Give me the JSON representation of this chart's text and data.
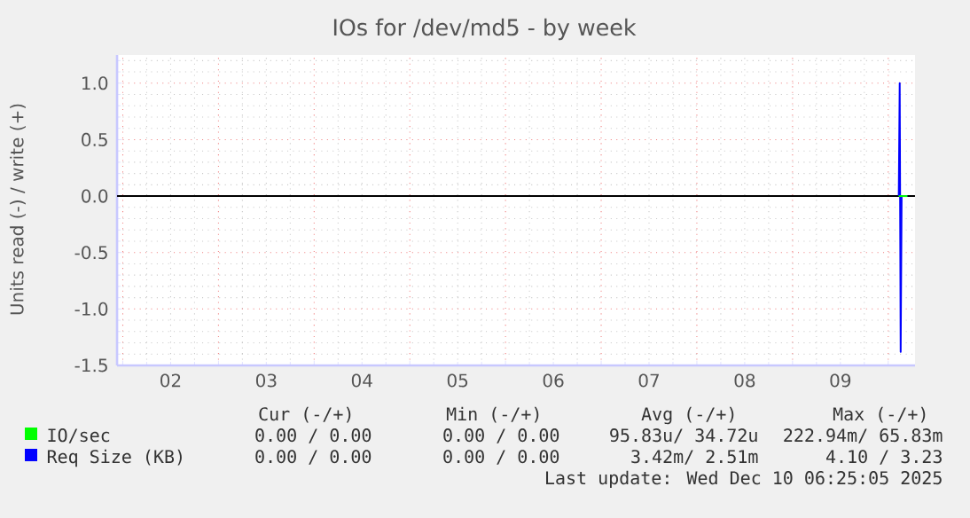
{
  "chart_data": {
    "type": "line",
    "title": "IOs for /dev/md5 - by week",
    "ylabel": "Units read (-) / write (+)",
    "xlim": [
      1.94,
      10.28
    ],
    "ylim": [
      -1.5,
      1.25
    ],
    "xticks": [
      {
        "value": 2,
        "label": null
      },
      {
        "value": 2.5,
        "label": "02"
      },
      {
        "value": 3,
        "label": null
      },
      {
        "value": 3.5,
        "label": "03"
      },
      {
        "value": 4,
        "label": null
      },
      {
        "value": 4.5,
        "label": "04"
      },
      {
        "value": 5,
        "label": null
      },
      {
        "value": 5.5,
        "label": "05"
      },
      {
        "value": 6,
        "label": null
      },
      {
        "value": 6.5,
        "label": "06"
      },
      {
        "value": 7,
        "label": null
      },
      {
        "value": 7.5,
        "label": "07"
      },
      {
        "value": 8,
        "label": null
      },
      {
        "value": 8.5,
        "label": "08"
      },
      {
        "value": 9,
        "label": null
      },
      {
        "value": 9.5,
        "label": "09"
      },
      {
        "value": 10,
        "label": null
      }
    ],
    "yticks": [
      {
        "value": -1.5,
        "label": "-1.5"
      },
      {
        "value": -1.0,
        "label": "-1.0"
      },
      {
        "value": -0.5,
        "label": "-0.5"
      },
      {
        "value": 0,
        "label": "0.0"
      },
      {
        "value": 0.5,
        "label": "0.5"
      },
      {
        "value": 1.0,
        "label": "1.0"
      }
    ],
    "grid": true,
    "legend": "bottom left",
    "ref_lines": [
      {
        "axis": "y",
        "value": 0,
        "color": "#000000"
      }
    ],
    "series": [
      {
        "name": "IO/sec",
        "color": "#00ff00",
        "x": [
          10.11,
          10.2
        ],
        "values": [
          0,
          0
        ]
      },
      {
        "name": "Req Size (KB)",
        "color": "#0000ff",
        "x": [
          10.11,
          10.12,
          10.13,
          10.14,
          10.2
        ],
        "values": [
          0,
          1.0,
          -1.38,
          0,
          0
        ]
      }
    ],
    "annotations": [
      "Cur (-/+)",
      "Min (-/+)",
      "Avg (-/+)",
      "Max (-/+)",
      "0.00 /  0.00",
      "0.00 /  0.00",
      "95.83u/ 34.72u",
      "222.94m/ 65.83m",
      "0.00 /  0.00",
      "0.00 /  0.00",
      "3.42m/  2.51m",
      "4.10 /  3.23",
      "Last update: Wed Dec 10 06:25:05 2025"
    ]
  }
}
